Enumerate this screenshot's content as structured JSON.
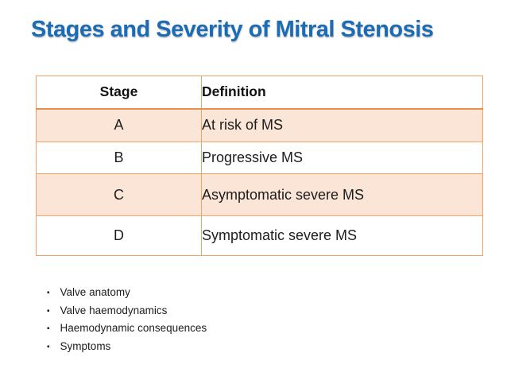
{
  "slide": {
    "title": "Stages and Severity of Mitral Stenosis"
  },
  "table": {
    "columns": {
      "stage": "Stage",
      "definition": "Definition"
    },
    "rows": [
      {
        "stage": "A",
        "definition": "At risk of MS"
      },
      {
        "stage": "B",
        "definition": "Progressive MS"
      },
      {
        "stage": "C",
        "definition": "Asymptomatic severe MS"
      },
      {
        "stage": "D",
        "definition": "Symptomatic severe MS"
      }
    ]
  },
  "bullets": {
    "marker": "▪",
    "items": [
      "Valve anatomy",
      "Valve haemodynamics",
      "Haemodynamic consequences",
      "Symptoms"
    ]
  },
  "colors": {
    "title_blue": "#1b6cb5",
    "table_border": "#ed9c5f",
    "row_fill": "#fbe5d6",
    "text": "#1f1f1f"
  }
}
